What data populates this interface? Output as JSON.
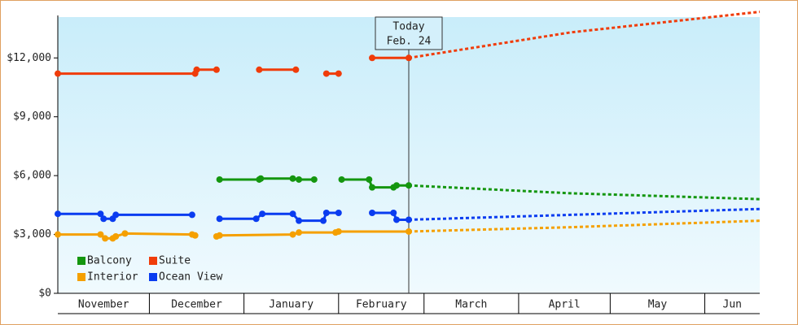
{
  "chart_data": {
    "type": "line",
    "xlim": [
      0,
      230
    ],
    "xticks": [
      {
        "value": 0,
        "label": "November"
      },
      {
        "value": 30,
        "label": "December"
      },
      {
        "value": 61,
        "label": "January"
      },
      {
        "value": 92,
        "label": "February"
      },
      {
        "value": 120,
        "label": "March"
      },
      {
        "value": 151,
        "label": "April"
      },
      {
        "value": 181,
        "label": "May"
      },
      {
        "value": 212,
        "label": "Jun"
      }
    ],
    "ylim": [
      0,
      14000
    ],
    "yticks": [
      {
        "value": 0,
        "label": "$0"
      },
      {
        "value": 3000,
        "label": "$3,000"
      },
      {
        "value": 6000,
        "label": "$6,000"
      },
      {
        "value": 9000,
        "label": "$9,000"
      },
      {
        "value": 12000,
        "label": "$12,000"
      }
    ],
    "annotation": {
      "x": 115,
      "lines": [
        "Today",
        "Feb. 24"
      ]
    },
    "series": [
      {
        "name": "Balcony",
        "color": "#14960f",
        "x": [
          53,
          66,
          66.5,
          77,
          79,
          84,
          null,
          93,
          102,
          103,
          110,
          111,
          115
        ],
        "values": [
          5800,
          5800,
          5850,
          5850,
          5800,
          5800,
          null,
          5800,
          5800,
          5400,
          5400,
          5500,
          5500
        ],
        "forecast_x": [
          115,
          168,
          230
        ],
        "forecast_values": [
          5500,
          5100,
          4800
        ]
      },
      {
        "name": "Suite",
        "color": "#f03c0a",
        "x": [
          0,
          45,
          45.5,
          52,
          null,
          66,
          78,
          null,
          88,
          92,
          null,
          103,
          115
        ],
        "values": [
          11200,
          11200,
          11400,
          11400,
          null,
          11400,
          11400,
          null,
          11200,
          11200,
          null,
          12000,
          12000
        ],
        "forecast_x": [
          115,
          168,
          230
        ],
        "forecast_values": [
          12000,
          13300,
          14350
        ]
      },
      {
        "name": "Interior",
        "color": "#f5a000",
        "x": [
          0,
          14,
          15.5,
          18,
          19,
          22,
          44,
          45,
          null,
          52,
          53,
          77,
          79,
          91,
          92,
          115
        ],
        "values": [
          3000,
          3000,
          2800,
          2800,
          2900,
          3050,
          3000,
          2950,
          null,
          2900,
          2950,
          3000,
          3100,
          3100,
          3150,
          3150
        ],
        "forecast_x": [
          115,
          168,
          230
        ],
        "forecast_values": [
          3150,
          3370,
          3700
        ]
      },
      {
        "name": "Ocean View",
        "color": "#0a3cf0",
        "x": [
          0,
          14,
          15,
          18,
          19,
          44,
          null,
          53,
          65,
          67,
          77,
          79,
          87,
          88,
          92,
          null,
          103,
          110,
          111,
          115
        ],
        "values": [
          4050,
          4050,
          3800,
          3800,
          4000,
          4000,
          null,
          3800,
          3800,
          4050,
          4050,
          3700,
          3700,
          4100,
          4100,
          null,
          4100,
          4100,
          3750,
          3750
        ],
        "forecast_x": [
          115,
          168,
          230
        ],
        "forecast_values": [
          3750,
          4000,
          4300
        ]
      }
    ]
  }
}
